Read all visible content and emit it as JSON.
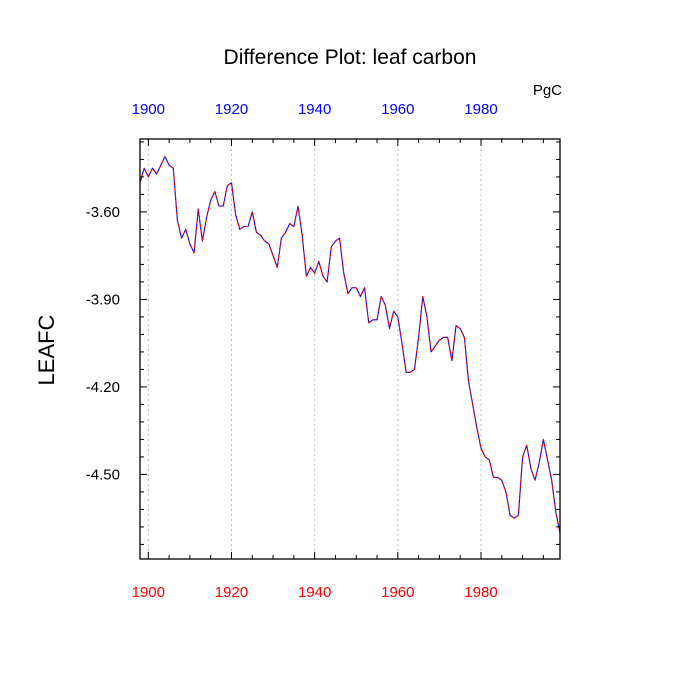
{
  "chart_data": {
    "type": "line",
    "title": "Difference Plot: leaf carbon",
    "units": "PgC",
    "ylabel": "LEAFC",
    "xlabel": "",
    "xlim": [
      1898,
      1999
    ],
    "ylim": [
      -4.79,
      -3.35
    ],
    "x_ticks": [
      1900,
      1920,
      1940,
      1960,
      1980
    ],
    "x_tick_labels": [
      "1900",
      "1920",
      "1940",
      "1960",
      "1980"
    ],
    "y_ticks": [
      -3.6,
      -3.9,
      -4.2,
      -4.5
    ],
    "y_tick_labels": [
      "-3.60",
      "-3.90",
      "-4.20",
      "-4.50"
    ],
    "grid": "vertical dotted",
    "colors": {
      "line_a": "#0000ff",
      "line_b": "#ff0000",
      "top_ticks": "#0000ff",
      "bottom_ticks": "#ff0000",
      "grid": "#bbbbbb",
      "axis": "#000000"
    },
    "series": [
      {
        "x": [
          1898,
          1899,
          1900,
          1901,
          1902,
          1903,
          1904,
          1905,
          1906,
          1907,
          1908,
          1909,
          1910,
          1911,
          1912,
          1913,
          1914,
          1915,
          1916,
          1917,
          1918,
          1919,
          1920,
          1921,
          1922,
          1923,
          1924,
          1925,
          1926,
          1927,
          1928,
          1929,
          1930,
          1931,
          1932,
          1933,
          1934,
          1935,
          1936,
          1937,
          1938,
          1939,
          1940,
          1941,
          1942,
          1943,
          1944,
          1945,
          1946,
          1947,
          1948,
          1949,
          1950,
          1951,
          1952,
          1953,
          1954,
          1955,
          1956,
          1957,
          1958,
          1959,
          1960,
          1961,
          1962,
          1963,
          1964,
          1965,
          1966,
          1967,
          1968,
          1969,
          1970,
          1971,
          1972,
          1973,
          1974,
          1975,
          1976,
          1977,
          1978,
          1979,
          1980,
          1981,
          1982,
          1983,
          1984,
          1985,
          1986,
          1987,
          1988,
          1989,
          1990,
          1991,
          1992,
          1993,
          1994,
          1995,
          1996,
          1997,
          1998,
          1999
        ],
        "values": [
          -3.5,
          -3.45,
          -3.48,
          -3.45,
          -3.47,
          -3.44,
          -3.41,
          -3.44,
          -3.45,
          -3.63,
          -3.69,
          -3.66,
          -3.71,
          -3.74,
          -3.59,
          -3.7,
          -3.62,
          -3.56,
          -3.53,
          -3.58,
          -3.58,
          -3.51,
          -3.5,
          -3.61,
          -3.66,
          -3.65,
          -3.65,
          -3.6,
          -3.67,
          -3.68,
          -3.7,
          -3.71,
          -3.75,
          -3.79,
          -3.69,
          -3.67,
          -3.64,
          -3.65,
          -3.58,
          -3.68,
          -3.82,
          -3.79,
          -3.81,
          -3.77,
          -3.82,
          -3.84,
          -3.72,
          -3.7,
          -3.69,
          -3.81,
          -3.88,
          -3.86,
          -3.86,
          -3.89,
          -3.86,
          -3.98,
          -3.97,
          -3.97,
          -3.89,
          -3.92,
          -4.0,
          -3.94,
          -3.96,
          -4.05,
          -4.15,
          -4.15,
          -4.14,
          -4.03,
          -3.89,
          -3.96,
          -4.08,
          -4.06,
          -4.04,
          -4.03,
          -4.03,
          -4.11,
          -3.99,
          -4.0,
          -4.03,
          -4.18,
          -4.26,
          -4.34,
          -4.41,
          -4.44,
          -4.45,
          -4.51,
          -4.51,
          -4.52,
          -4.56,
          -4.64,
          -4.65,
          -4.64,
          -4.44,
          -4.4,
          -4.48,
          -4.52,
          -4.46,
          -4.38,
          -4.45,
          -4.52,
          -4.63,
          -4.7
        ]
      }
    ]
  }
}
